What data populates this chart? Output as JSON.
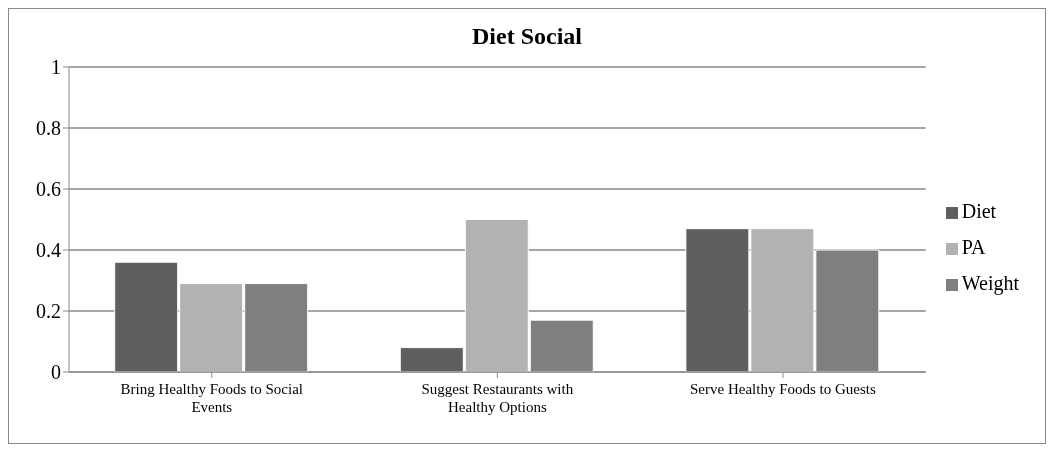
{
  "chart_data": {
    "type": "bar",
    "title": "Diet Social",
    "categories": [
      "Bring Healthy Foods to Social Events",
      "Suggest Restaurants with Healthy Options",
      "Serve Healthy Foods to Guests"
    ],
    "series": [
      {
        "name": "Diet",
        "color": "#5f5f5f",
        "values": [
          0.36,
          0.08,
          0.47
        ]
      },
      {
        "name": "PA",
        "color": "#b2b2b2",
        "values": [
          0.29,
          0.5,
          0.47
        ]
      },
      {
        "name": "Weight",
        "color": "#7f7f7f",
        "values": [
          0.29,
          0.17,
          0.4
        ]
      }
    ],
    "ylim": [
      0,
      1
    ],
    "yticks": [
      0,
      0.2,
      0.4,
      0.6,
      0.8,
      1
    ],
    "grid": "y",
    "legend": "right"
  }
}
